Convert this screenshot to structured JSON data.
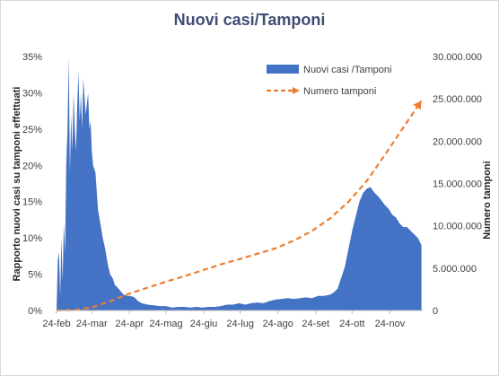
{
  "chart_data": {
    "type": "area",
    "title": "Nuovi casi/Tamponi",
    "ylabel_left": "Rapporto nuovi casi su tamponi effettuati",
    "ylabel_right": "Numero tamponi",
    "x_ticks": [
      "24-feb",
      "24-mar",
      "24-apr",
      "24-mag",
      "24-giu",
      "24-lug",
      "24-ago",
      "24-set",
      "24-ott",
      "24-nov"
    ],
    "x_tick_days": [
      0,
      29,
      60,
      90,
      121,
      151,
      182,
      213,
      243,
      274
    ],
    "x_range_days": [
      0,
      301
    ],
    "y_left_ticks": [
      "0%",
      "5%",
      "10%",
      "15%",
      "20%",
      "25%",
      "30%",
      "35%"
    ],
    "y_left_range": [
      0,
      0.35
    ],
    "y_right_ticks": [
      "0",
      "5.000.000",
      "10.000.000",
      "15.000.000",
      "20.000.000",
      "25.000.000",
      "30.000.000"
    ],
    "y_right_range": [
      0,
      30000000
    ],
    "grid": false,
    "legend_position": "top-right",
    "series": [
      {
        "name": "Nuovi casi /Tamponi",
        "kind": "area",
        "axis": "left",
        "color": "#4472c4",
        "days": [
          0,
          1,
          2,
          3,
          4,
          5,
          6,
          7,
          8,
          9,
          10,
          11,
          12,
          13,
          14,
          15,
          16,
          17,
          18,
          19,
          20,
          21,
          22,
          24,
          26,
          27,
          28,
          29,
          30,
          32,
          34,
          36,
          38,
          40,
          42,
          44,
          46,
          48,
          50,
          52,
          55,
          58,
          61,
          64,
          67,
          70,
          75,
          80,
          85,
          90,
          95,
          100,
          105,
          110,
          115,
          120,
          125,
          130,
          135,
          140,
          145,
          150,
          155,
          160,
          165,
          170,
          175,
          180,
          185,
          190,
          195,
          200,
          205,
          210,
          215,
          220,
          225,
          228,
          231,
          234,
          237,
          240,
          243,
          246,
          249,
          252,
          255,
          258,
          261,
          264,
          267,
          270,
          273,
          276,
          279,
          282,
          285,
          288,
          291,
          294,
          297,
          300
        ],
        "values": [
          0.0,
          0.07,
          0.08,
          0.02,
          0.1,
          0.04,
          0.12,
          0.08,
          0.2,
          0.25,
          0.35,
          0.19,
          0.27,
          0.22,
          0.3,
          0.25,
          0.22,
          0.28,
          0.33,
          0.26,
          0.3,
          0.25,
          0.32,
          0.27,
          0.3,
          0.25,
          0.26,
          0.22,
          0.2,
          0.19,
          0.14,
          0.12,
          0.1,
          0.085,
          0.065,
          0.05,
          0.045,
          0.035,
          0.032,
          0.028,
          0.022,
          0.02,
          0.02,
          0.018,
          0.013,
          0.01,
          0.008,
          0.007,
          0.006,
          0.006,
          0.004,
          0.005,
          0.005,
          0.004,
          0.005,
          0.004,
          0.005,
          0.005,
          0.006,
          0.008,
          0.008,
          0.01,
          0.008,
          0.01,
          0.011,
          0.01,
          0.013,
          0.015,
          0.016,
          0.017,
          0.016,
          0.017,
          0.018,
          0.017,
          0.02,
          0.02,
          0.022,
          0.025,
          0.03,
          0.045,
          0.06,
          0.085,
          0.11,
          0.13,
          0.15,
          0.162,
          0.168,
          0.17,
          0.163,
          0.158,
          0.152,
          0.145,
          0.14,
          0.132,
          0.128,
          0.12,
          0.115,
          0.115,
          0.11,
          0.105,
          0.1,
          0.09
        ]
      },
      {
        "name": "Numero tamponi",
        "kind": "line",
        "axis": "right",
        "color": "#ed7d31",
        "days": [
          0,
          15,
          30,
          45,
          60,
          75,
          90,
          105,
          120,
          135,
          150,
          165,
          180,
          195,
          210,
          225,
          240,
          255,
          270,
          285,
          300
        ],
        "values": [
          5000,
          60000,
          400000,
          1150000,
          2000000,
          2700000,
          3400000,
          4050000,
          4750000,
          5450000,
          6050000,
          6700000,
          7350000,
          8250000,
          9400000,
          10900000,
          12850000,
          15300000,
          18400000,
          21600000,
          24800000
        ]
      }
    ]
  }
}
